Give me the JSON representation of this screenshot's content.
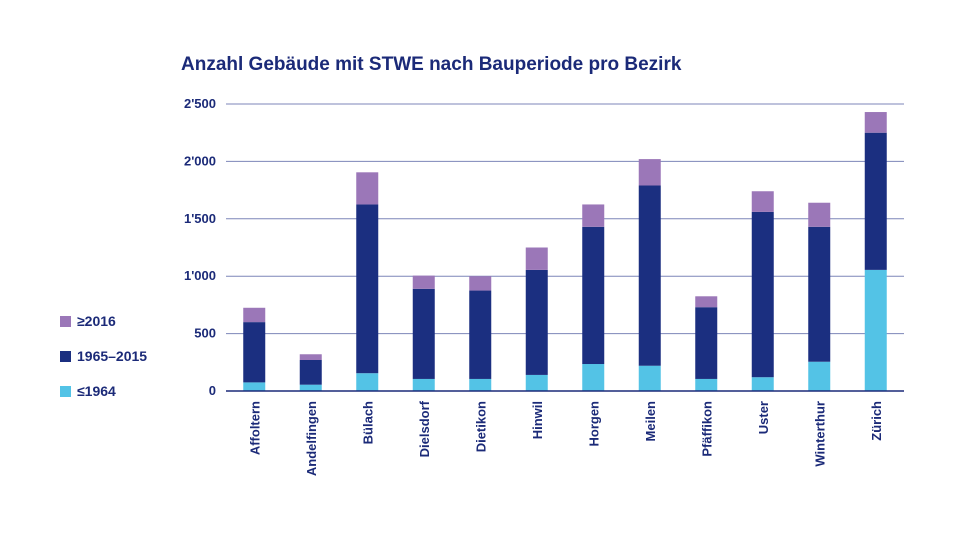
{
  "chart_data": {
    "type": "bar",
    "stacked": true,
    "title": "Anzahl Gebäude mit STWE nach Bauperiode pro Bezirk",
    "categories": [
      "Affoltern",
      "Andelfingen",
      "Bülach",
      "Dielsdorf",
      "Dietikon",
      "Hinwil",
      "Horgen",
      "Meilen",
      "Pfäffikon",
      "Uster",
      "Winterthur",
      "Zürich"
    ],
    "series": [
      {
        "name": "≤1964",
        "color": "#53c3e6",
        "values": [
          75,
          55,
          155,
          105,
          105,
          140,
          235,
          220,
          105,
          120,
          255,
          1055
        ]
      },
      {
        "name": "1965–2015",
        "color": "#1b2f80",
        "values": [
          525,
          215,
          1470,
          785,
          770,
          915,
          1195,
          1570,
          625,
          1440,
          1175,
          1195
        ]
      },
      {
        "name": "≥2016",
        "color": "#9b77b8",
        "values": [
          125,
          50,
          280,
          115,
          125,
          195,
          195,
          230,
          95,
          180,
          210,
          180
        ]
      }
    ],
    "ylim": [
      0,
      2500
    ],
    "yticks": [
      0,
      500,
      1000,
      1500,
      2000,
      2500
    ],
    "ytick_labels": [
      "0",
      "500",
      "1'000",
      "1'500",
      "2'000",
      "2'500"
    ],
    "grid": true,
    "legend_position": "left",
    "legend_order": [
      "≥2016",
      "1965–2015",
      "≤1964"
    ]
  }
}
